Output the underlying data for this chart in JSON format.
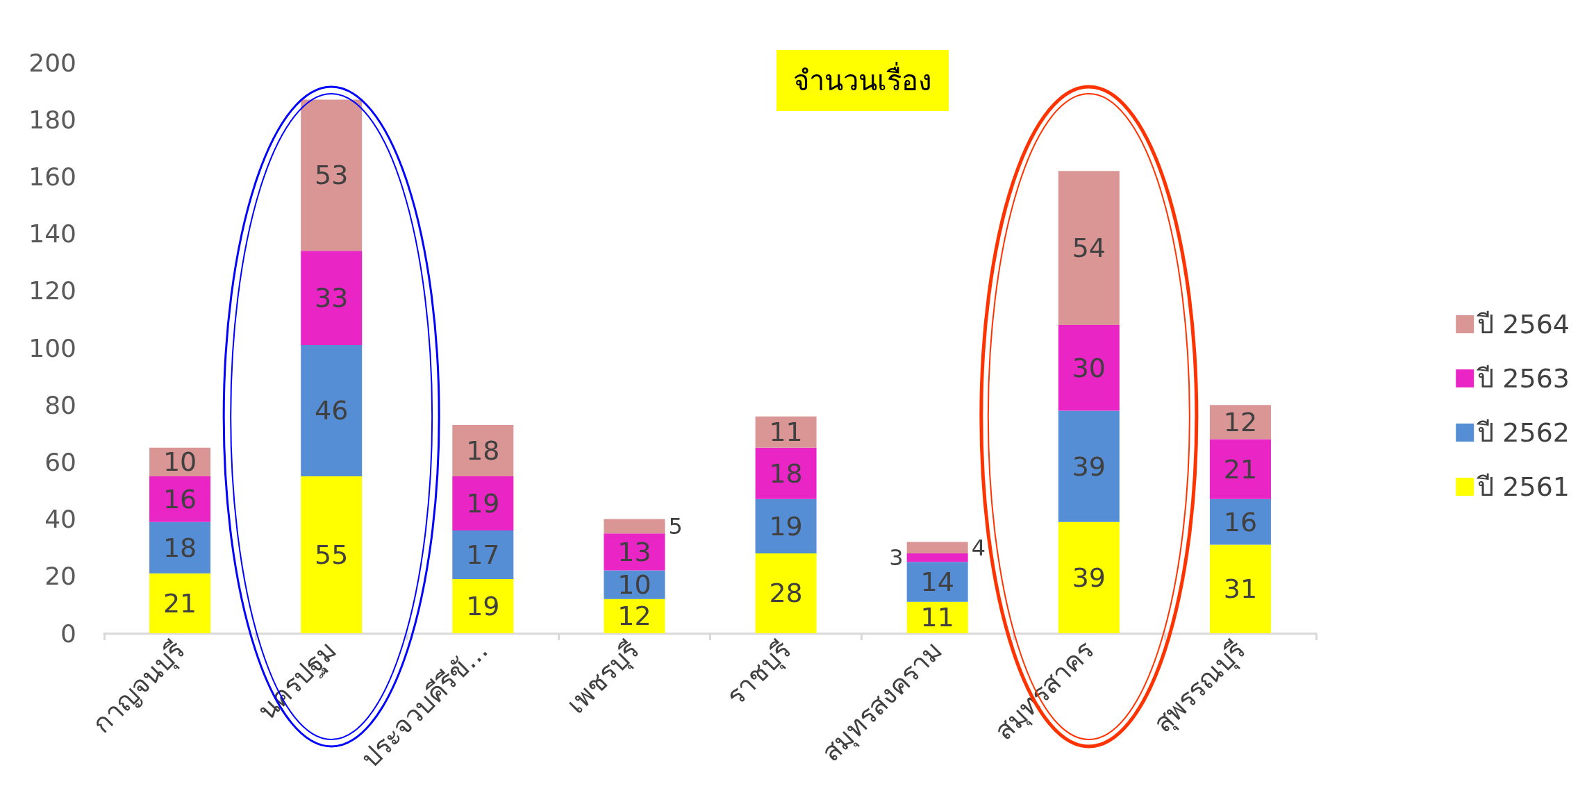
{
  "chart_data": {
    "type": "bar",
    "title": "จำนวนเรื่อง",
    "stacked": true,
    "data_labels": true,
    "legend": "right",
    "grid": false,
    "categories": [
      "กาญจนบุรี",
      "นครปฐม",
      "ประจวบคีรีขั...",
      "เพชรบุรี",
      "ราชบุรี",
      "สมุทรสงคราม",
      "สมุทรสาคร",
      "สุพรรณบุรี"
    ],
    "ylim": [
      0,
      200
    ],
    "yticks": [
      0,
      20,
      40,
      60,
      80,
      100,
      120,
      140,
      160,
      180,
      200
    ],
    "series": [
      {
        "name": "ปี 2561",
        "color": "#ffff00",
        "values": [
          21,
          55,
          19,
          12,
          28,
          11,
          39,
          31
        ]
      },
      {
        "name": "ปี 2562",
        "color": "#558ed5",
        "values": [
          18,
          46,
          17,
          10,
          19,
          14,
          39,
          16
        ]
      },
      {
        "name": "ปี 2563",
        "color": "#e925c5",
        "values": [
          16,
          33,
          19,
          13,
          18,
          3,
          30,
          21
        ]
      },
      {
        "name": "ปี 2564",
        "color": "#d99694",
        "values": [
          10,
          53,
          18,
          5,
          11,
          4,
          54,
          12
        ]
      }
    ]
  }
}
